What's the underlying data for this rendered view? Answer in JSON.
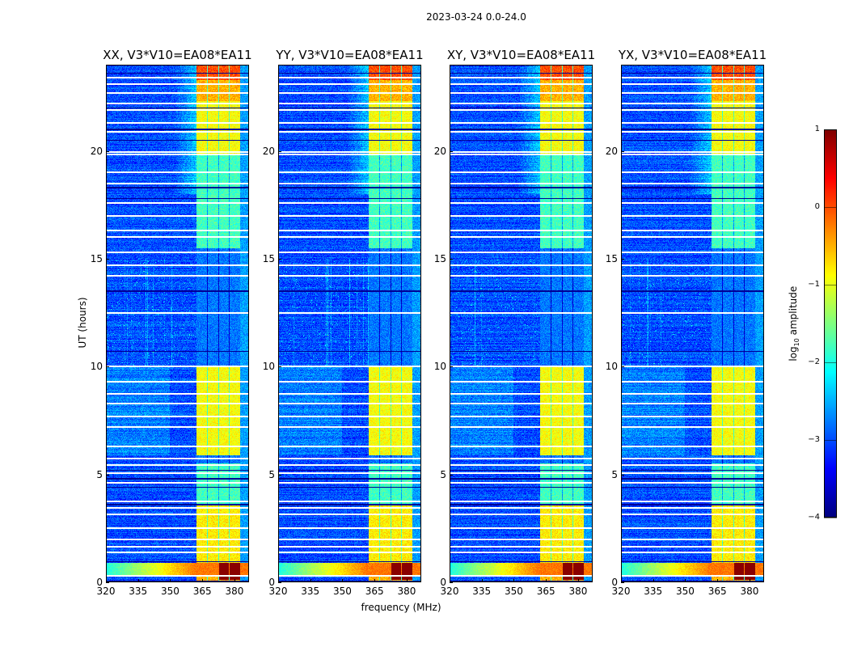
{
  "suptitle": "2023-03-24 0.0-24.0",
  "chart_data": {
    "type": "heatmap",
    "panels": [
      {
        "title": "XX, V3*V10=EA08*EA11",
        "seed": 11
      },
      {
        "title": "YY, V3*V10=EA08*EA11",
        "seed": 23
      },
      {
        "title": "XY, V3*V10=EA08*EA11",
        "seed": 37
      },
      {
        "title": "YX, V3*V10=EA08*EA11",
        "seed": 53
      }
    ],
    "xlabel": "frequency (MHz)",
    "ylabel": "UT (hours)",
    "xlim": [
      320,
      386.8
    ],
    "ylim": [
      0,
      24
    ],
    "xticks": [
      "320",
      "335",
      "350",
      "365",
      "380"
    ],
    "xtick_values": [
      320,
      335,
      350,
      365,
      380
    ],
    "yticks": [
      "0",
      "5",
      "10",
      "15",
      "20"
    ],
    "ytick_values": [
      0,
      5,
      10,
      15,
      20
    ],
    "colorbar": {
      "label_main": "log",
      "label_sub": "10",
      "label_rest": " amplitude",
      "range": [
        -4,
        1
      ],
      "ticks": [
        "1",
        "0",
        "−1",
        "−2",
        "−3",
        "−4"
      ],
      "tick_values": [
        1,
        0,
        -1,
        -2,
        -3,
        -4
      ],
      "colormap": "jet"
    },
    "model": {
      "background_level": -3.0,
      "rfi_subbands_mhz": [
        [
          362.3,
          367.0
        ],
        [
          367.4,
          372.3
        ],
        [
          372.7,
          377.5
        ],
        [
          377.9,
          382.6
        ]
      ],
      "above_band_level": -2.6,
      "band_levels_by_time": [
        {
          "t0": 0.0,
          "t1": 0.9,
          "level": -0.5
        },
        {
          "t0": 0.9,
          "t1": 3.6,
          "level": -0.8
        },
        {
          "t0": 3.6,
          "t1": 5.5,
          "level": -1.8
        },
        {
          "t0": 5.5,
          "t1": 5.9,
          "level": -2.8
        },
        {
          "t0": 5.9,
          "t1": 10.0,
          "level": -0.9
        },
        {
          "t0": 10.0,
          "t1": 15.5,
          "level": -2.8
        },
        {
          "t0": 15.5,
          "t1": 19.8,
          "level": -1.8
        },
        {
          "t0": 19.8,
          "t1": 22.3,
          "level": -0.9
        },
        {
          "t0": 22.3,
          "t1": 23.3,
          "level": -0.5
        },
        {
          "t0": 23.3,
          "t1": 24.0,
          "level": 0.0
        }
      ],
      "saturated_block": {
        "t0": 0.1,
        "t1": 0.9,
        "f0": 372.7,
        "f1": 382.6,
        "level": 0.95
      },
      "broadband_burst": {
        "t0": 0.3,
        "t1": 0.9,
        "level_low": -2.0,
        "level_high": -0.2
      },
      "flagged_hours": [
        0.3,
        1.4,
        1.65,
        2.0,
        2.5,
        3.15,
        3.45,
        3.75,
        4.6,
        5.05,
        5.45,
        5.75,
        6.3,
        7.2,
        7.7,
        8.3,
        8.75,
        9.3,
        10.0,
        12.5,
        14.2,
        14.7,
        15.3,
        16.0,
        16.3,
        17.0,
        17.6,
        18.5,
        19.0,
        19.85,
        19.95,
        20.9,
        21.3,
        21.9,
        22.2,
        22.7,
        23.1,
        23.4
      ],
      "dark_hours": [
        0.05,
        0.95,
        3.6,
        4.4,
        4.8,
        5.2,
        10.7,
        13.5,
        17.8,
        18.3,
        20.5,
        21.0,
        22.0,
        23.6
      ]
    }
  }
}
